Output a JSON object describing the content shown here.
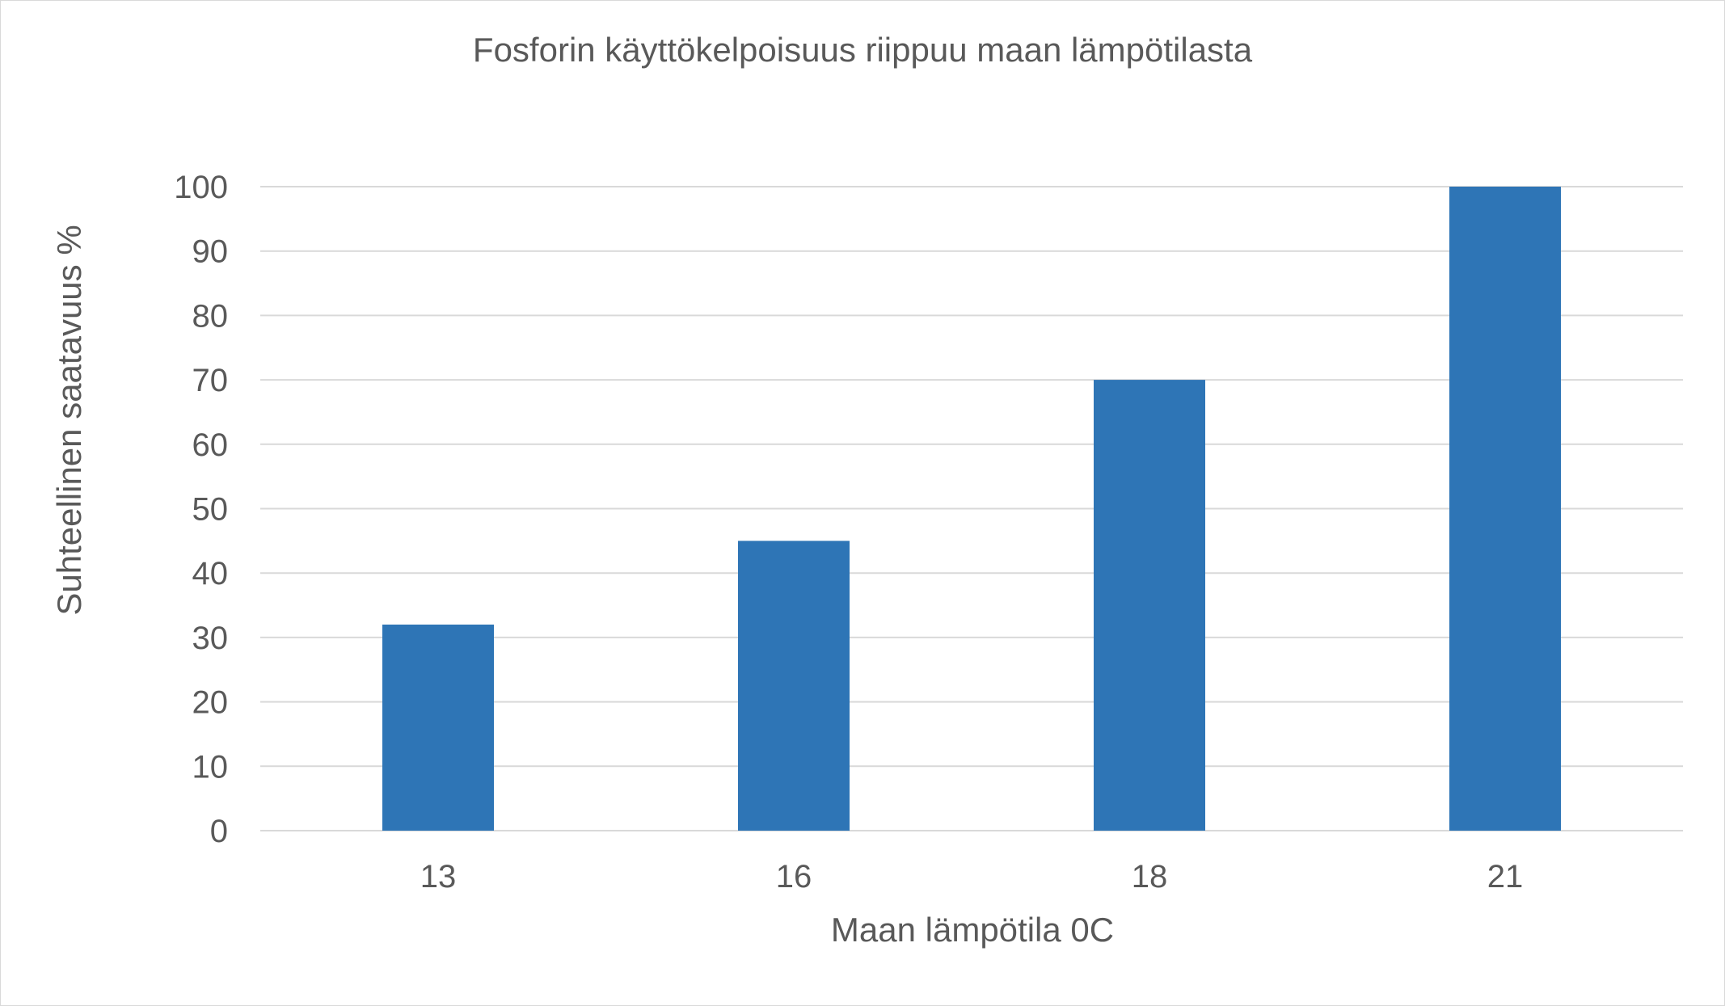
{
  "chart_data": {
    "type": "bar",
    "title": "Fosforin käyttökelpoisuus riippuu maan lämpötilasta",
    "xlabel": "Maan lämpötila 0C",
    "ylabel": "Suhteellinen saatavuus %",
    "categories": [
      "13",
      "16",
      "18",
      "21"
    ],
    "values": [
      32,
      45,
      70,
      100
    ],
    "ylim": [
      0,
      100
    ],
    "yticks": [
      0,
      10,
      20,
      30,
      40,
      50,
      60,
      70,
      80,
      90,
      100
    ],
    "grid": true,
    "legend": "none",
    "bar_color": "#2E75B6"
  }
}
